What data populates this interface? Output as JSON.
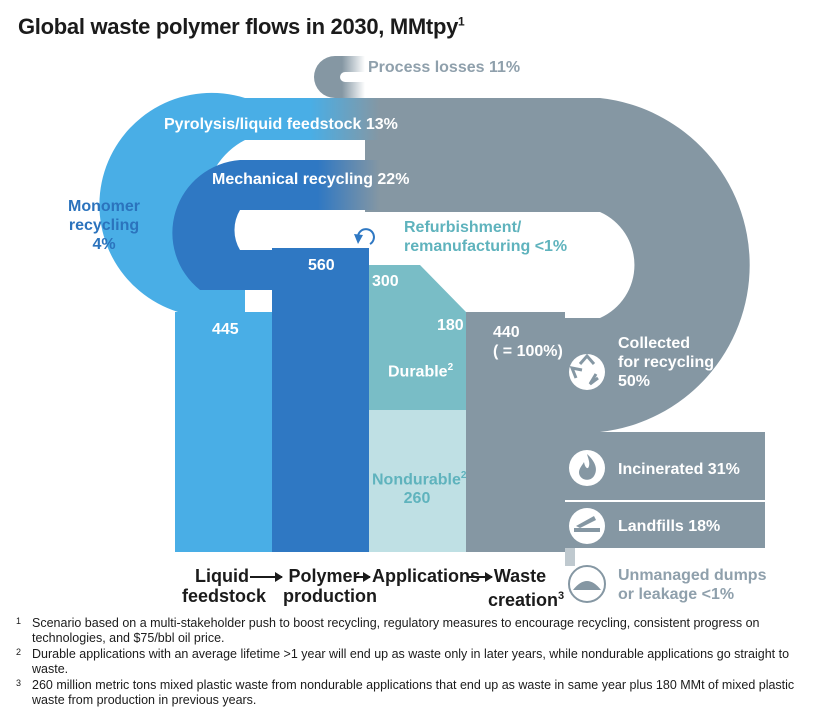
{
  "title": "Global waste polymer flows in 2030, MMtpy",
  "title_sup": "1",
  "flows": {
    "process_losses": "Process losses  11%",
    "pyrolysis": "Pyrolysis/liquid feedstock 13%",
    "mechanical": "Mechanical recycling 22%",
    "monomer_line1": "Monomer",
    "monomer_line2": "recycling",
    "monomer_line3": "4%",
    "refurb_line1": "Refurbishment/",
    "refurb_line2": "remanufacturing <1%"
  },
  "values": {
    "liquid": "445",
    "polymer": "560",
    "applications": "300",
    "durable_value": "180",
    "waste_line1": "440",
    "waste_line2": "( = 100%)",
    "durable_label": "Durable",
    "durable_sup": "2",
    "nondurable_label": "Nondurable",
    "nondurable_sup": "2",
    "nondurable_value": "260"
  },
  "outcomes": {
    "collected_line1": "Collected",
    "collected_line2": "for recycling",
    "collected_line3": "50%",
    "incinerated": "Incinerated 31%",
    "landfills": "Landfills 18%",
    "unmanaged_line1": "Unmanaged dumps",
    "unmanaged_line2": "or leakage <1%"
  },
  "axis": {
    "liquid_line1": "Liquid",
    "liquid_line2": "feedstock",
    "polymer_line1": "Polymer",
    "polymer_line2": "production",
    "applications": "Applications",
    "waste_line1": "Waste",
    "waste_line2": "creation",
    "waste_sup": "3"
  },
  "footnotes": [
    {
      "num": "1",
      "text": "Scenario based on a multi-stakeholder push to boost recycling, regulatory measures to encourage recycling, consistent progress on technologies, and  $75/bbl oil price."
    },
    {
      "num": "2",
      "text": "Durable applications with an average lifetime >1 year will end up as waste only in later years, while nondurable applications go straight to waste."
    },
    {
      "num": "3",
      "text": "260 million metric tons mixed plastic waste from nondurable applications that end up as waste in same year plus 180 MMt of mixed plastic waste from production in previous years."
    }
  ],
  "colors": {
    "light_blue": "#49aee6",
    "mid_blue": "#2f78c3",
    "teal": "#79bdc6",
    "pale_teal": "#bfe0e4",
    "gray": "#8597a3",
    "gray_dark": "#7b8d99",
    "teal_text": "#5fb3bd"
  },
  "icons": [
    "recycle-icon",
    "flame-icon",
    "landfill-truck-icon",
    "dump-icon"
  ]
}
